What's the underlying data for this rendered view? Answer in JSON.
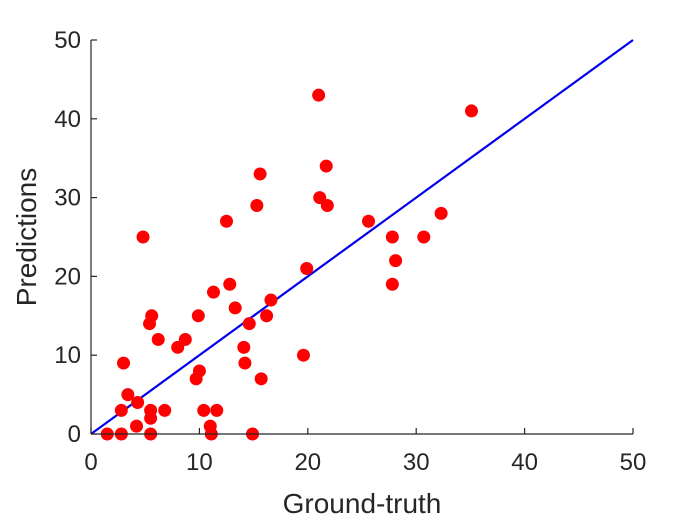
{
  "chart_data": {
    "type": "scatter",
    "title": "",
    "xlabel": "Ground-truth",
    "ylabel": "Predictions",
    "xlim": [
      0,
      50
    ],
    "ylim": [
      0,
      50
    ],
    "xticks": [
      0,
      10,
      20,
      30,
      40,
      50
    ],
    "yticks": [
      0,
      10,
      20,
      30,
      40,
      50
    ],
    "xtick_labels": [
      "0",
      "10",
      "20",
      "30",
      "40",
      "50"
    ],
    "ytick_labels": [
      "0",
      "10",
      "20",
      "30",
      "40",
      "50"
    ],
    "grid": false,
    "series": [
      {
        "marker_color": "#ff0000",
        "points": [
          [
            1.5,
            0
          ],
          [
            2.8,
            0
          ],
          [
            2.8,
            3
          ],
          [
            3.0,
            9
          ],
          [
            3.4,
            5
          ],
          [
            4.3,
            4
          ],
          [
            4.2,
            1
          ],
          [
            4.8,
            25
          ],
          [
            5.4,
            14
          ],
          [
            5.6,
            15
          ],
          [
            5.5,
            3
          ],
          [
            5.5,
            2
          ],
          [
            5.5,
            0
          ],
          [
            6.2,
            12
          ],
          [
            6.8,
            3
          ],
          [
            8.0,
            11
          ],
          [
            8.7,
            12
          ],
          [
            9.7,
            7
          ],
          [
            9.9,
            15
          ],
          [
            10.0,
            8
          ],
          [
            10.4,
            3
          ],
          [
            11.0,
            1
          ],
          [
            11.1,
            0
          ],
          [
            11.3,
            18
          ],
          [
            11.6,
            3
          ],
          [
            12.5,
            27
          ],
          [
            12.8,
            19
          ],
          [
            13.3,
            16
          ],
          [
            14.1,
            11
          ],
          [
            14.2,
            9
          ],
          [
            14.6,
            14
          ],
          [
            14.9,
            0
          ],
          [
            15.3,
            29
          ],
          [
            15.6,
            33
          ],
          [
            15.7,
            7
          ],
          [
            16.2,
            15
          ],
          [
            16.6,
            17
          ],
          [
            19.6,
            10
          ],
          [
            19.9,
            21
          ],
          [
            21.0,
            43
          ],
          [
            21.1,
            30
          ],
          [
            21.7,
            34
          ],
          [
            21.8,
            29
          ],
          [
            25.6,
            27
          ],
          [
            27.8,
            25
          ],
          [
            27.8,
            19
          ],
          [
            28.1,
            22
          ],
          [
            30.7,
            25
          ],
          [
            32.3,
            28
          ],
          [
            35.1,
            41
          ]
        ]
      }
    ],
    "reference_line": {
      "from": [
        0,
        0
      ],
      "to": [
        50,
        50
      ],
      "color": "#0000ee"
    }
  }
}
